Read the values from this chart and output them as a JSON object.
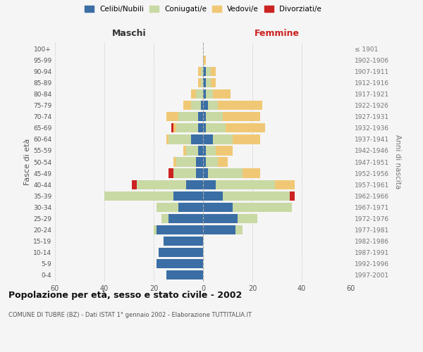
{
  "age_groups": [
    "0-4",
    "5-9",
    "10-14",
    "15-19",
    "20-24",
    "25-29",
    "30-34",
    "35-39",
    "40-44",
    "45-49",
    "50-54",
    "55-59",
    "60-64",
    "65-69",
    "70-74",
    "75-79",
    "80-84",
    "85-89",
    "90-94",
    "95-99",
    "100+"
  ],
  "birth_years": [
    "1997-2001",
    "1992-1996",
    "1987-1991",
    "1982-1986",
    "1977-1981",
    "1972-1976",
    "1967-1971",
    "1962-1966",
    "1957-1961",
    "1952-1956",
    "1947-1951",
    "1942-1946",
    "1937-1941",
    "1932-1936",
    "1927-1931",
    "1922-1926",
    "1917-1921",
    "1912-1916",
    "1907-1911",
    "1902-1906",
    "≤ 1901"
  ],
  "male": {
    "celibi": [
      15,
      19,
      18,
      16,
      19,
      14,
      10,
      12,
      7,
      3,
      3,
      2,
      5,
      2,
      2,
      1,
      0,
      0,
      0,
      0,
      0
    ],
    "coniugati": [
      0,
      0,
      0,
      0,
      1,
      3,
      9,
      28,
      20,
      9,
      8,
      5,
      9,
      9,
      8,
      4,
      3,
      1,
      1,
      0,
      0
    ],
    "vedovi": [
      0,
      0,
      0,
      0,
      0,
      0,
      0,
      0,
      0,
      0,
      1,
      1,
      1,
      1,
      5,
      3,
      2,
      1,
      1,
      0,
      0
    ],
    "divorziati": [
      0,
      0,
      0,
      0,
      0,
      0,
      0,
      0,
      2,
      2,
      0,
      0,
      0,
      1,
      0,
      0,
      0,
      0,
      0,
      0,
      0
    ]
  },
  "female": {
    "nubili": [
      0,
      0,
      0,
      0,
      13,
      14,
      12,
      8,
      5,
      2,
      1,
      1,
      4,
      1,
      1,
      2,
      1,
      1,
      1,
      0,
      0
    ],
    "coniugate": [
      0,
      0,
      0,
      0,
      3,
      8,
      24,
      27,
      24,
      14,
      5,
      4,
      8,
      8,
      7,
      4,
      3,
      2,
      2,
      0,
      0
    ],
    "vedove": [
      0,
      0,
      0,
      0,
      0,
      0,
      0,
      0,
      8,
      7,
      4,
      7,
      11,
      16,
      15,
      18,
      7,
      2,
      2,
      1,
      0
    ],
    "divorziate": [
      0,
      0,
      0,
      0,
      0,
      0,
      0,
      2,
      0,
      0,
      0,
      0,
      0,
      0,
      0,
      0,
      0,
      0,
      0,
      0,
      0
    ]
  },
  "colors": {
    "celibi_nubili": "#3a6ea5",
    "coniugati": "#c8d9a4",
    "vedovi": "#f0c875",
    "divorziati": "#cc2222"
  },
  "title": "Popolazione per età, sesso e stato civile - 2002",
  "subtitle": "COMUNE DI TUBRE (BZ) - Dati ISTAT 1° gennaio 2002 - Elaborazione TUTTITALIA.IT",
  "xlabel_left": "Maschi",
  "xlabel_right": "Femmine",
  "ylabel_left": "Fasce di età",
  "ylabel_right": "Anni di nascita",
  "xlim": 60,
  "background_color": "#f5f5f5",
  "legend_labels": [
    "Celibi/Nubili",
    "Coniugati/e",
    "Vedovi/e",
    "Divorziati/e"
  ]
}
